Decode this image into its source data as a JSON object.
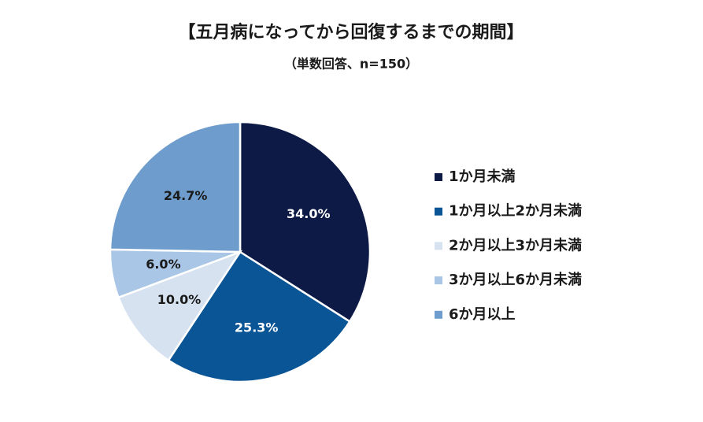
{
  "chart_data": {
    "type": "pie",
    "title": "【五月病になってから回復するまでの期間】",
    "subtitle": "（単数回答、n=150）",
    "categories": [
      "1か月未満",
      "1か月以上2か月未満",
      "2か月以上3か月未満",
      "3か月以上6か月未満",
      "6か月以上"
    ],
    "values": [
      34.0,
      25.3,
      10.0,
      6.0,
      24.7
    ],
    "value_labels": [
      "34.0%",
      "25.3%",
      "10.0%",
      "6.0%",
      "24.7%"
    ],
    "colors": [
      "#0d1a45",
      "#0a5596",
      "#d6e2ef",
      "#a9c6e6",
      "#6d9ccd"
    ],
    "legend": "right"
  }
}
